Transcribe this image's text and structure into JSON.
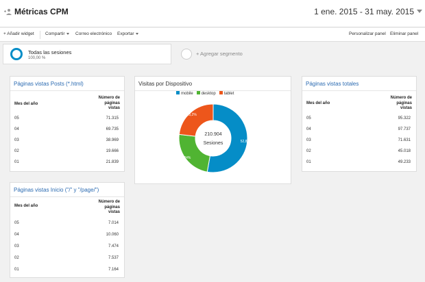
{
  "header": {
    "title": "Métricas CPM",
    "date_range": "1 ene. 2015 - 31 may. 2015"
  },
  "toolbar": {
    "add_widget": "+ Añadir widget",
    "share": "Compartir",
    "email": "Correo electrónico",
    "export": "Exportar",
    "customize": "Personalizar panel",
    "delete": "Eliminar panel"
  },
  "segments": {
    "active_name": "Todas las sesiones",
    "active_pct": "100,00 %",
    "add_label": "+ Agregar segmento"
  },
  "cards": {
    "posts": {
      "title": "Páginas vistas Posts (*.html)",
      "col1": "Mes del año",
      "col2_l1": "Número de",
      "col2_l2": "páginas",
      "col2_l3": "vistas",
      "rows": [
        {
          "month": "05",
          "value": "71.315"
        },
        {
          "month": "04",
          "value": "69.735"
        },
        {
          "month": "03",
          "value": "38.969"
        },
        {
          "month": "02",
          "value": "19.666"
        },
        {
          "month": "01",
          "value": "21.839"
        }
      ]
    },
    "home": {
      "title": "Páginas vistas Inicio (\"/\" y \"/page/\")",
      "col1": "Mes del año",
      "col2_l1": "Número de",
      "col2_l2": "páginas",
      "col2_l3": "vistas",
      "rows": [
        {
          "month": "05",
          "value": "7.014"
        },
        {
          "month": "04",
          "value": "10.060"
        },
        {
          "month": "03",
          "value": "7.474"
        },
        {
          "month": "02",
          "value": "7.537"
        },
        {
          "month": "01",
          "value": "7.164"
        }
      ]
    },
    "totals": {
      "title": "Páginas vistas totales",
      "col1": "Mes del año",
      "col2_l1": "Número de",
      "col2_l2": "páginas",
      "col2_l3": "vistas",
      "rows": [
        {
          "month": "05",
          "value": "95.322"
        },
        {
          "month": "04",
          "value": "97.737"
        },
        {
          "month": "03",
          "value": "71.631"
        },
        {
          "month": "02",
          "value": "45.018"
        },
        {
          "month": "01",
          "value": "49.233"
        }
      ]
    },
    "devices": {
      "title": "Visitas por Dispositivo",
      "center_value": "210.904",
      "center_label": "Sesiones"
    }
  },
  "chart_data": {
    "type": "pie",
    "title": "Visitas por Dispositivo",
    "categories": [
      "mobile",
      "desktop",
      "tablet"
    ],
    "values": [
      52.8,
      24.0,
      23.2
    ],
    "labels": [
      "52,8%",
      "24%",
      "23,2%"
    ],
    "colors": [
      "#058dc7",
      "#50b432",
      "#ed561b"
    ],
    "legend_position": "top"
  }
}
